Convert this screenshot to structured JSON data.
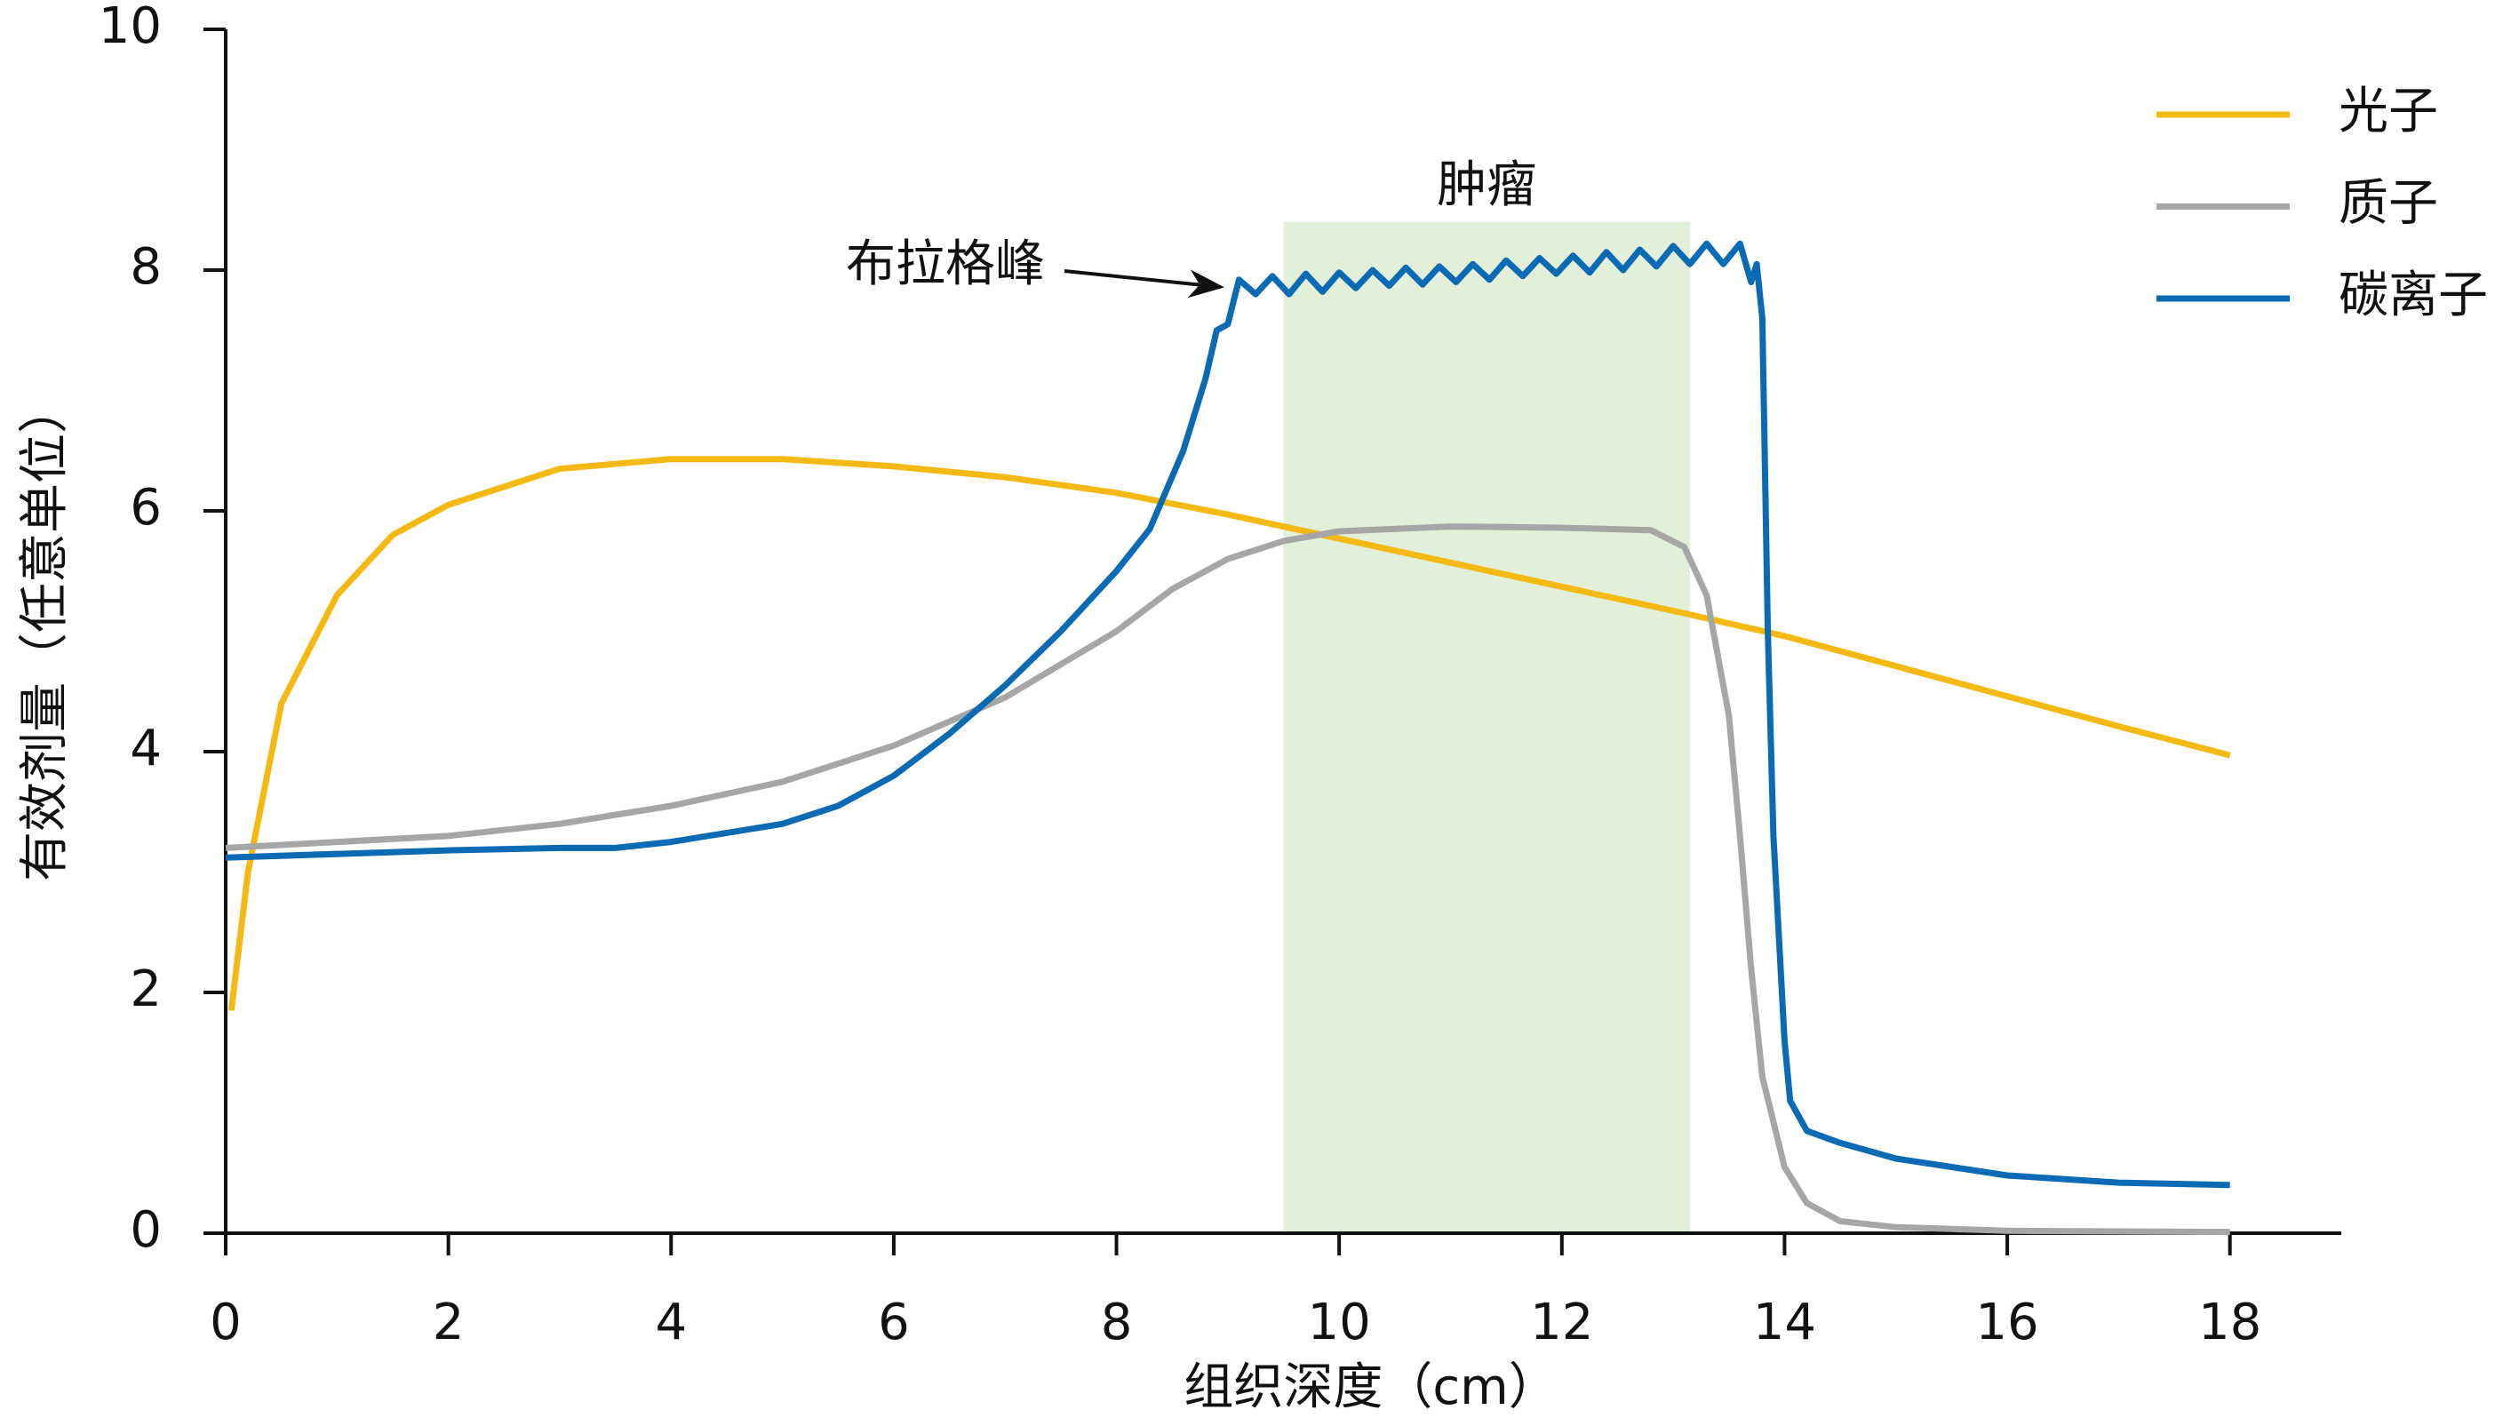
{
  "chart_data": {
    "type": "line",
    "ylabel": "有效剂量（任意单位）",
    "xlabel": "组织深度（cm）",
    "xlim": [
      0,
      19
    ],
    "ylim": [
      0,
      10
    ],
    "xticks": [
      0,
      2,
      4,
      6,
      8,
      10,
      12,
      14,
      16,
      18
    ],
    "yticks": [
      0,
      2,
      4,
      6,
      8,
      10
    ],
    "legend": "upper right",
    "tumor_region": {
      "label": "肿瘤",
      "x": [
        9.5,
        13.15
      ],
      "color": "#e2efd9"
    },
    "annotation": "布拉格峰",
    "series": [
      {
        "name": "光子",
        "color": "#f5b914",
        "x": [
          0.05,
          0.2,
          0.5,
          1,
          1.5,
          2,
          3,
          4,
          5,
          6,
          7,
          8,
          9,
          10,
          11,
          12,
          13,
          14,
          15,
          16,
          17,
          18
        ],
        "values": [
          1.85,
          3.0,
          4.4,
          5.3,
          5.8,
          6.05,
          6.35,
          6.43,
          6.43,
          6.37,
          6.28,
          6.15,
          5.97,
          5.77,
          5.57,
          5.37,
          5.17,
          4.96,
          4.71,
          4.46,
          4.21,
          3.97
        ]
      },
      {
        "name": "质子",
        "color": "#a6a6a6",
        "x": [
          0,
          2,
          3,
          4,
          5,
          6,
          7,
          8,
          8.5,
          9,
          9.5,
          10,
          11,
          12,
          12.8,
          13.1,
          13.3,
          13.5,
          13.6,
          13.7,
          13.8,
          14,
          14.2,
          14.5,
          15,
          16,
          18
        ],
        "values": [
          3.2,
          3.3,
          3.4,
          3.55,
          3.75,
          4.05,
          4.45,
          5.0,
          5.35,
          5.6,
          5.75,
          5.83,
          5.87,
          5.86,
          5.84,
          5.7,
          5.3,
          4.3,
          3.3,
          2.2,
          1.3,
          0.55,
          0.25,
          0.1,
          0.05,
          0.02,
          0.01
        ]
      },
      {
        "name": "碳离子",
        "color": "#0a6ab4",
        "x": [
          0,
          2,
          3,
          3.5,
          4,
          5,
          5.5,
          6,
          6.5,
          7,
          7.5,
          8,
          8.3,
          8.6,
          8.8,
          8.9,
          9.0,
          9.1,
          9.25,
          9.4,
          9.55,
          9.7,
          9.85,
          10.0,
          10.15,
          10.3,
          10.45,
          10.6,
          10.75,
          10.9,
          11.05,
          11.2,
          11.35,
          11.5,
          11.65,
          11.8,
          11.95,
          12.1,
          12.25,
          12.4,
          12.55,
          12.7,
          12.85,
          13.0,
          13.15,
          13.3,
          13.45,
          13.6,
          13.7,
          13.75,
          13.8,
          13.85,
          13.9,
          14.0,
          14.05,
          14.2,
          14.5,
          15,
          16,
          17,
          18
        ],
        "values": [
          3.12,
          3.18,
          3.2,
          3.2,
          3.25,
          3.4,
          3.55,
          3.8,
          4.15,
          4.55,
          5.0,
          5.5,
          5.85,
          6.5,
          7.1,
          7.5,
          7.55,
          7.92,
          7.8,
          7.95,
          7.8,
          7.97,
          7.82,
          7.98,
          7.85,
          8.0,
          7.87,
          8.02,
          7.88,
          8.03,
          7.9,
          8.05,
          7.92,
          8.08,
          7.95,
          8.1,
          7.97,
          8.12,
          7.98,
          8.15,
          8.0,
          8.17,
          8.03,
          8.2,
          8.05,
          8.22,
          8.05,
          8.22,
          7.9,
          8.05,
          7.6,
          5.0,
          3.3,
          1.6,
          1.1,
          0.85,
          0.75,
          0.62,
          0.48,
          0.42,
          0.4
        ]
      }
    ]
  }
}
